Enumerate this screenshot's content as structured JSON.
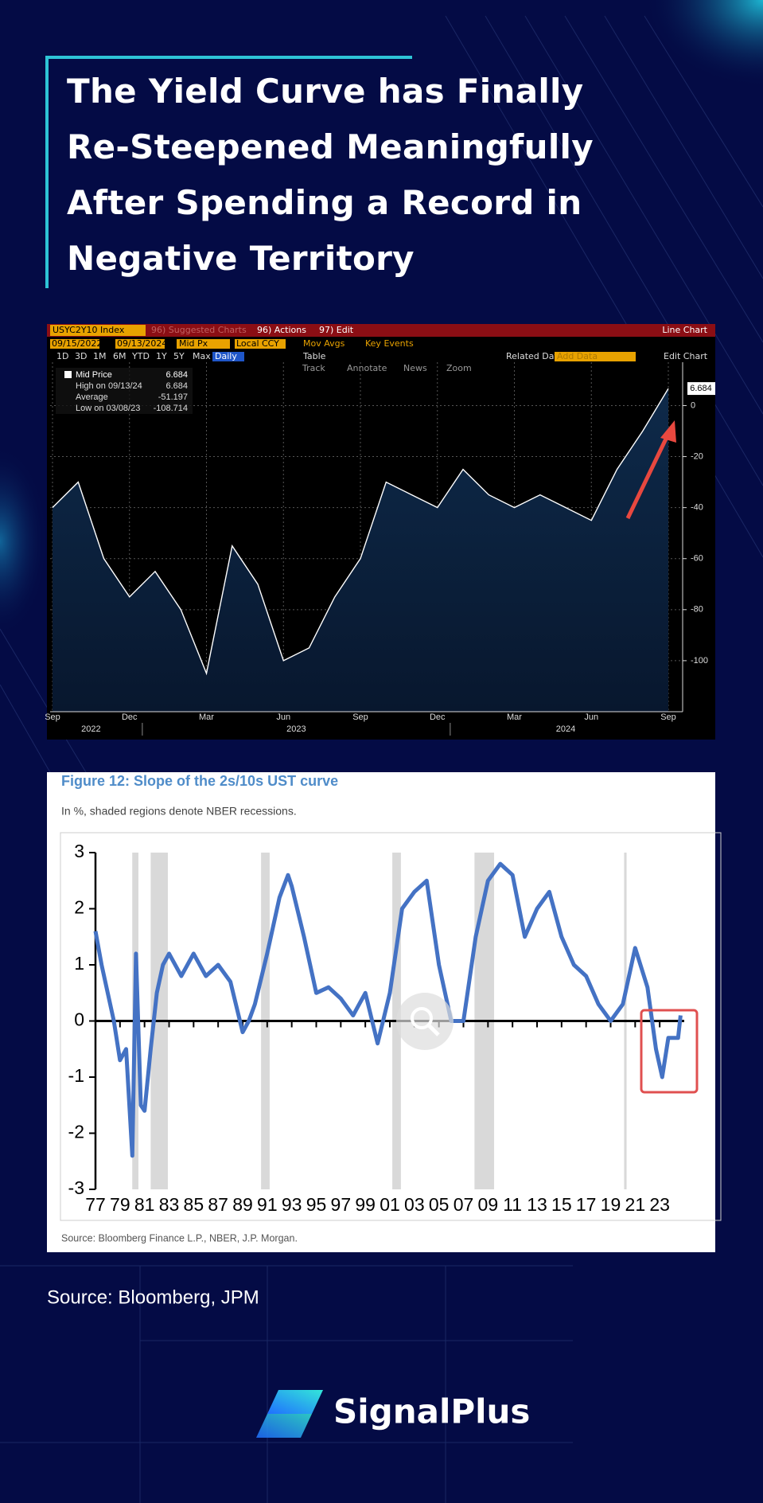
{
  "header": {
    "title": "The Yield Curve has Finally Re-Steepened Meaningfully After Spending a Record in Negative Territory"
  },
  "terminal": {
    "ticker": "USYC2Y10 Index",
    "suggested": "96) Suggested Charts",
    "actions": "96) Actions",
    "edit": "97) Edit",
    "mode": "Line Chart",
    "start": "09/15/2022",
    "end": "09/13/2024",
    "field": "Mid Px",
    "ccy": "Local CCY",
    "mov": "Mov Avgs",
    "events": "Key Events",
    "periods": [
      "1D",
      "3D",
      "1M",
      "6M",
      "YTD",
      "1Y",
      "5Y",
      "Max"
    ],
    "freq": "Daily",
    "table": "Table",
    "related": "Related Dat",
    "add": "Add Data",
    "edit_chart": "Edit Chart",
    "tools": [
      "Track",
      "Annotate",
      "News",
      "Zoom"
    ]
  },
  "chart_data": [
    {
      "type": "line",
      "x": [
        "2022-09",
        "2022-10",
        "2022-11",
        "2022-12",
        "2023-01",
        "2023-02",
        "2023-03",
        "2023-04",
        "2023-05",
        "2023-06",
        "2023-07",
        "2023-08",
        "2023-09",
        "2023-10",
        "2023-11",
        "2023-12",
        "2024-01",
        "2024-02",
        "2024-03",
        "2024-04",
        "2024-05",
        "2024-06",
        "2024-07",
        "2024-08",
        "2024-09"
      ],
      "series": [
        {
          "name": "Mid Price",
          "color": "#ffffff",
          "values": [
            -40,
            -30,
            -60,
            -75,
            -65,
            -80,
            -105,
            -55,
            -70,
            -100,
            -95,
            -75,
            -60,
            -30,
            -35,
            -40,
            -25,
            -35,
            -40,
            -35,
            -40,
            -45,
            -25,
            -10,
            6.684
          ]
        }
      ],
      "stats": [
        {
          "label": "High on 09/13/24",
          "value": 6.684
        },
        {
          "label": "Average",
          "value": -51.197
        },
        {
          "label": "Low on 03/08/23",
          "value": -108.714
        }
      ],
      "ylim": [
        -120,
        17
      ],
      "yticks": [
        0,
        -20,
        -40,
        -60,
        -80,
        -100
      ],
      "xticks": [
        {
          "value": "2022-09",
          "label": "Sep"
        },
        {
          "value": "2022-12",
          "label": "Dec"
        },
        {
          "value": "2023-03",
          "label": "Mar"
        },
        {
          "value": "2023-06",
          "label": "Jun"
        },
        {
          "value": "2023-09",
          "label": "Sep"
        },
        {
          "value": "2023-12",
          "label": "Dec"
        },
        {
          "value": "2024-03",
          "label": "Mar"
        },
        {
          "value": "2024-06",
          "label": "Jun"
        },
        {
          "value": "2024-09",
          "label": "Sep"
        }
      ],
      "year_labels": [
        "2022",
        "2023",
        "2024"
      ],
      "grid": true
    },
    {
      "type": "line",
      "title": "Figure 12: Slope of the 2s/10s UST curve",
      "subtitle": "In %, shaded regions denote NBER recessions.",
      "source": "Source: Bloomberg Finance L.P., NBER, J.P. Morgan.",
      "x": [
        1977,
        1977.5,
        1978,
        1978.5,
        1979,
        1979.5,
        1980,
        1980.3,
        1980.7,
        1981,
        1981.5,
        1982,
        1982.5,
        1983,
        1984,
        1985,
        1986,
        1987,
        1988,
        1989,
        1989.5,
        1990,
        1991,
        1992,
        1992.7,
        1993,
        1994,
        1995,
        1996,
        1997,
        1998,
        1999,
        2000,
        2001,
        2002,
        2003,
        2004,
        2005,
        2006,
        2007,
        2008,
        2009,
        2010,
        2011,
        2012,
        2013,
        2014,
        2015,
        2016,
        2017,
        2018,
        2019,
        2020,
        2021,
        2022,
        2022.7,
        2023.2,
        2023.7,
        2024.5,
        2024.7
      ],
      "series": [
        {
          "name": "2s/10s",
          "color": "#4472c4",
          "values": [
            1.6,
            1.0,
            0.5,
            0.0,
            -0.7,
            -0.5,
            -2.4,
            1.2,
            -1.5,
            -1.6,
            -0.5,
            0.5,
            1.0,
            1.2,
            0.8,
            1.2,
            0.8,
            1.0,
            0.7,
            -0.2,
            0.0,
            0.3,
            1.2,
            2.2,
            2.6,
            2.4,
            1.5,
            0.5,
            0.6,
            0.4,
            0.1,
            0.5,
            -0.4,
            0.5,
            2.0,
            2.3,
            2.5,
            1.0,
            0.0,
            0.0,
            1.5,
            2.5,
            2.8,
            2.6,
            1.5,
            2.0,
            2.3,
            1.5,
            1.0,
            0.8,
            0.3,
            0.0,
            0.3,
            1.3,
            0.6,
            -0.5,
            -1.0,
            -0.3,
            -0.3,
            0.1
          ]
        }
      ],
      "recessions": [
        [
          1980.0,
          1980.5
        ],
        [
          1981.5,
          1982.9
        ],
        [
          1990.5,
          1991.2
        ],
        [
          2001.2,
          2001.9
        ],
        [
          2007.9,
          2009.5
        ],
        [
          2020.1,
          2020.3
        ]
      ],
      "xlim": [
        1977,
        2025
      ],
      "ylim": [
        -3,
        3
      ],
      "yticks": [
        3,
        2,
        1,
        0,
        -1,
        -2,
        -3
      ],
      "xticks": [
        {
          "value": 1977,
          "label": "77"
        },
        {
          "value": 1979,
          "label": "79"
        },
        {
          "value": 1981,
          "label": "81"
        },
        {
          "value": 1983,
          "label": "83"
        },
        {
          "value": 1985,
          "label": "85"
        },
        {
          "value": 1987,
          "label": "87"
        },
        {
          "value": 1989,
          "label": "89"
        },
        {
          "value": 1991,
          "label": "91"
        },
        {
          "value": 1993,
          "label": "93"
        },
        {
          "value": 1995,
          "label": "95"
        },
        {
          "value": 1997,
          "label": "97"
        },
        {
          "value": 1999,
          "label": "99"
        },
        {
          "value": 2001,
          "label": "01"
        },
        {
          "value": 2003,
          "label": "03"
        },
        {
          "value": 2005,
          "label": "05"
        },
        {
          "value": 2007,
          "label": "07"
        },
        {
          "value": 2009,
          "label": "09"
        },
        {
          "value": 2011,
          "label": "11"
        },
        {
          "value": 2013,
          "label": "13"
        },
        {
          "value": 2015,
          "label": "15"
        },
        {
          "value": 2017,
          "label": "17"
        },
        {
          "value": 2019,
          "label": "19"
        },
        {
          "value": 2021,
          "label": "21"
        },
        {
          "value": 2023,
          "label": "23"
        }
      ]
    }
  ],
  "footer": {
    "source": "Source: Bloomberg, JPM",
    "brand": "SignalPlus"
  }
}
